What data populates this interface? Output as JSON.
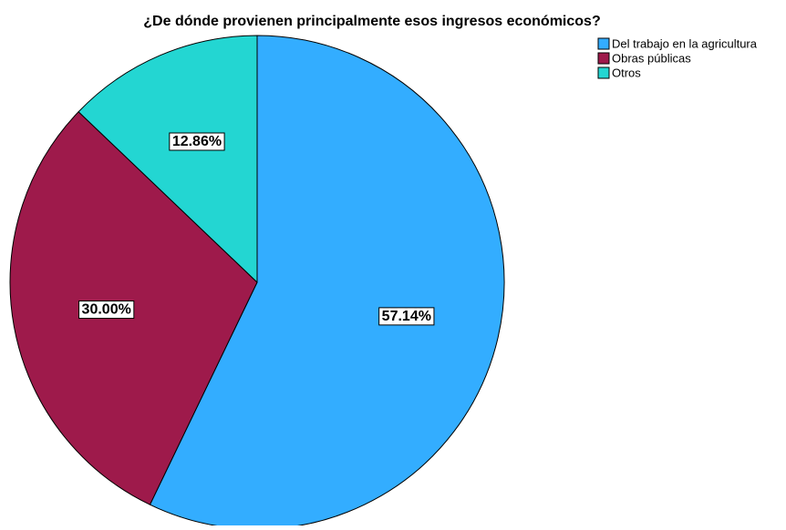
{
  "chart_data": {
    "type": "pie",
    "title": "¿De dónde provienen principalmente esos ingresos económicos?",
    "legend_position": "top-right",
    "slices": [
      {
        "label": "Del trabajo en la agricultura",
        "value": 57.14,
        "value_label": "57.14%",
        "color": "#33adff"
      },
      {
        "label": "Obras públicas",
        "value": 30.0,
        "value_label": "30.00%",
        "color": "#9e1a4b"
      },
      {
        "label": "Otros",
        "value": 12.86,
        "value_label": "12.86%",
        "color": "#23d6d2"
      }
    ]
  }
}
